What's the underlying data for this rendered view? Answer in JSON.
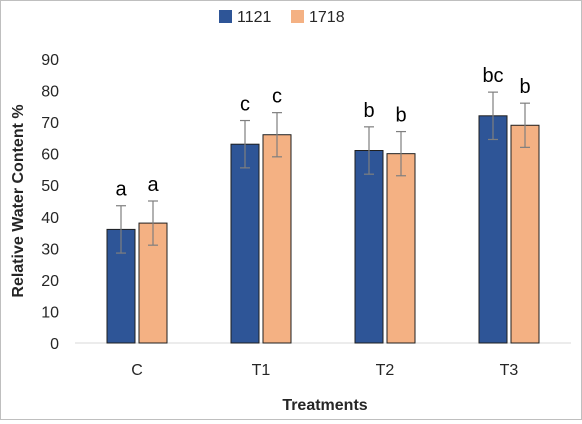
{
  "chart_data": {
    "type": "bar",
    "categories": [
      "C",
      "T1",
      "T2",
      "T3"
    ],
    "series": [
      {
        "name": "1121",
        "color": "#2e5597",
        "values": [
          36,
          63,
          61,
          72
        ],
        "errors": [
          7.5,
          7.5,
          7.5,
          7.5
        ],
        "labels": [
          "a",
          "c",
          "b",
          "bc"
        ]
      },
      {
        "name": "1718",
        "color": "#f4b183",
        "values": [
          38,
          66,
          60,
          69
        ],
        "errors": [
          7,
          7,
          7,
          7
        ],
        "labels": [
          "a",
          "c",
          "b",
          "b"
        ]
      }
    ],
    "title": "",
    "xlabel": "Treatments",
    "ylabel": "Relative Water Content %",
    "ylim": [
      0,
      90
    ],
    "yticks": [
      0,
      10,
      20,
      30,
      40,
      50,
      60,
      70,
      80,
      90
    ],
    "grid": false,
    "legend_position": "top-center",
    "error_bar_color": "#7f7f7f"
  }
}
